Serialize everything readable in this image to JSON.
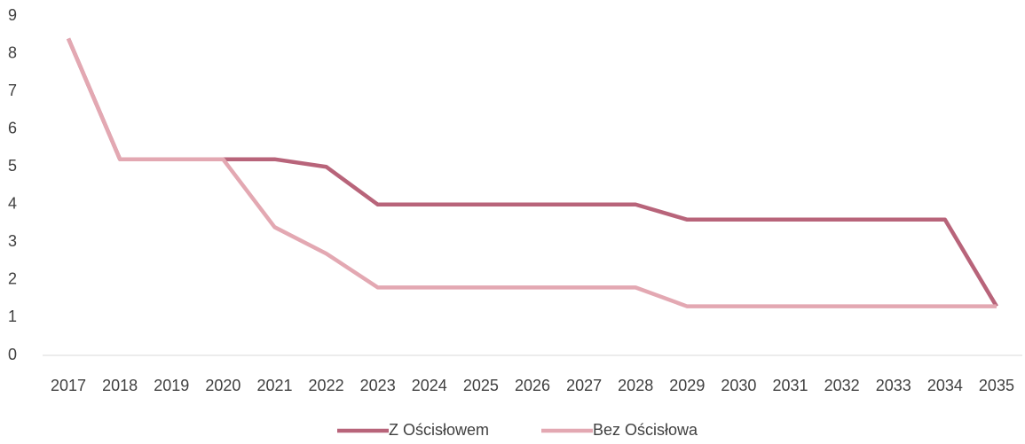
{
  "chart_data": {
    "type": "line",
    "categories": [
      "2017",
      "2018",
      "2019",
      "2020",
      "2021",
      "2022",
      "2023",
      "2024",
      "2025",
      "2026",
      "2027",
      "2028",
      "2029",
      "2030",
      "2031",
      "2032",
      "2033",
      "2034",
      "2035"
    ],
    "series": [
      {
        "name": "Z Ościsłowem",
        "color": "#b8647a",
        "values": [
          8.4,
          5.2,
          5.2,
          5.2,
          5.2,
          5.0,
          4.0,
          4.0,
          4.0,
          4.0,
          4.0,
          4.0,
          3.6,
          3.6,
          3.6,
          3.6,
          3.6,
          3.6,
          1.3
        ]
      },
      {
        "name": "Bez Ościsłowa",
        "color": "#e3a8b2",
        "values": [
          8.4,
          5.2,
          5.2,
          5.2,
          3.4,
          2.7,
          1.8,
          1.8,
          1.8,
          1.8,
          1.8,
          1.8,
          1.3,
          1.3,
          1.3,
          1.3,
          1.3,
          1.3,
          1.3
        ]
      }
    ],
    "ylim": [
      0,
      9
    ],
    "yticks": [
      0,
      1,
      2,
      3,
      4,
      5,
      6,
      7,
      8,
      9
    ],
    "grid": false,
    "legend": "bottom"
  }
}
